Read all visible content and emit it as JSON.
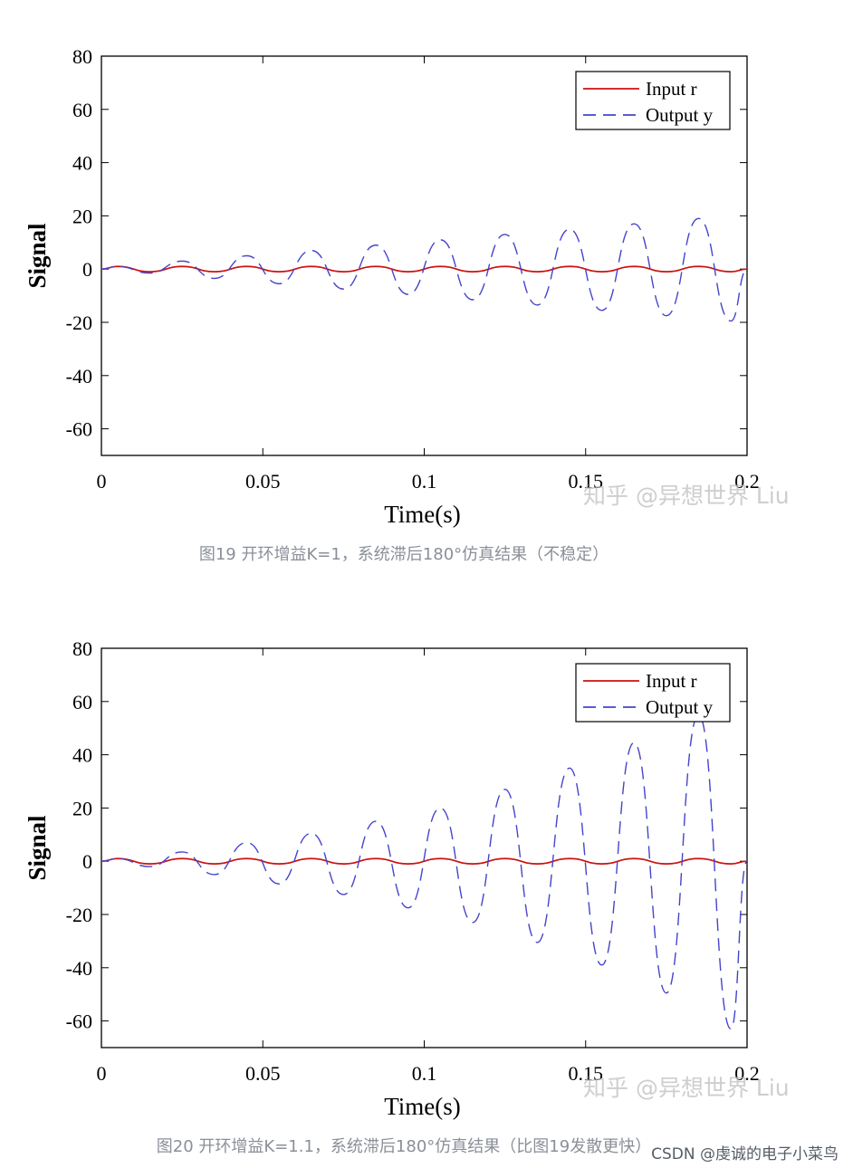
{
  "charts": [
    {
      "id": "fig1",
      "caption": "图19 开环增益K=1，系统滞后180°仿真结果（不稳定）",
      "watermark": "知乎 @异想世界 Liu",
      "ylabel": "Signal",
      "xlabel": "Time(s)",
      "xticks": [
        "0",
        "0.05",
        "0.1",
        "0.15",
        "0.2"
      ],
      "yticks": [
        "80",
        "60",
        "40",
        "20",
        "0",
        "-20",
        "-40",
        "-60"
      ],
      "legend": [
        "Input r",
        "Output y"
      ]
    },
    {
      "id": "fig2",
      "caption": "图20 开环增益K=1.1，系统滞后180°仿真结果（比图19发散更快）",
      "watermark": "知乎 @异想世界 Liu",
      "ylabel": "Signal",
      "xlabel": "Time(s)",
      "xticks": [
        "0",
        "0.05",
        "0.1",
        "0.15",
        "0.2"
      ],
      "yticks": [
        "80",
        "60",
        "40",
        "20",
        "0",
        "-20",
        "-40",
        "-60"
      ],
      "legend": [
        "Input r",
        "Output y"
      ]
    }
  ],
  "footer": {
    "csdn": "CSDN @虔诚的电子小菜鸟"
  },
  "chart_data": [
    {
      "type": "line",
      "xlabel": "Time(s)",
      "ylabel": "Signal",
      "xlim": [
        0,
        0.2
      ],
      "ylim": [
        -70,
        80
      ],
      "legend_position": "top-right",
      "series": [
        {
          "name": "Input r",
          "color": "#cc1111",
          "style": "solid",
          "x": [
            0,
            0.005,
            0.015,
            0.025,
            0.035,
            0.045,
            0.055,
            0.065,
            0.075,
            0.085,
            0.095,
            0.105,
            0.115,
            0.125,
            0.135,
            0.145,
            0.155,
            0.165,
            0.175,
            0.185,
            0.195,
            0.2
          ],
          "y": [
            0,
            1,
            -1,
            1,
            -1,
            1,
            -1,
            1,
            -1,
            1,
            -1,
            1,
            -1,
            1,
            -1,
            1,
            -1,
            1,
            -1,
            1,
            -1,
            0
          ]
        },
        {
          "name": "Output y",
          "color": "#4444cc",
          "style": "dashed",
          "x": [
            0,
            0.005,
            0.015,
            0.025,
            0.035,
            0.045,
            0.055,
            0.065,
            0.075,
            0.085,
            0.095,
            0.105,
            0.115,
            0.125,
            0.135,
            0.145,
            0.155,
            0.165,
            0.175,
            0.185,
            0.195,
            0.2
          ],
          "y": [
            0,
            1,
            -1.5,
            3,
            -3.5,
            5,
            -5.5,
            7,
            -7.5,
            9,
            -9.5,
            11,
            -11.5,
            13,
            -13.5,
            15,
            -15.5,
            17,
            -17.5,
            19,
            -19.5,
            0
          ]
        }
      ]
    },
    {
      "type": "line",
      "xlabel": "Time(s)",
      "ylabel": "Signal",
      "xlim": [
        0,
        0.2
      ],
      "ylim": [
        -70,
        80
      ],
      "legend_position": "top-right",
      "series": [
        {
          "name": "Input r",
          "color": "#cc1111",
          "style": "solid",
          "x": [
            0,
            0.005,
            0.015,
            0.025,
            0.035,
            0.045,
            0.055,
            0.065,
            0.075,
            0.085,
            0.095,
            0.105,
            0.115,
            0.125,
            0.135,
            0.145,
            0.155,
            0.165,
            0.175,
            0.185,
            0.195,
            0.2
          ],
          "y": [
            0,
            1,
            -1,
            1,
            -1,
            1,
            -1,
            1,
            -1,
            1,
            -1,
            1,
            -1,
            1,
            -1,
            1,
            -1,
            1,
            -1,
            1,
            -1,
            0
          ]
        },
        {
          "name": "Output y",
          "color": "#4444cc",
          "style": "dashed",
          "x": [
            0,
            0.005,
            0.015,
            0.025,
            0.035,
            0.045,
            0.055,
            0.065,
            0.075,
            0.085,
            0.095,
            0.105,
            0.115,
            0.125,
            0.135,
            0.145,
            0.155,
            0.165,
            0.175,
            0.185,
            0.195,
            0.2
          ],
          "y": [
            0,
            1,
            -2,
            3.5,
            -5,
            7,
            -8.5,
            10.5,
            -12.5,
            15,
            -17.5,
            20,
            -23,
            27,
            -30.5,
            35,
            -39,
            44.5,
            -49.5,
            55,
            -63,
            0
          ]
        }
      ]
    }
  ]
}
